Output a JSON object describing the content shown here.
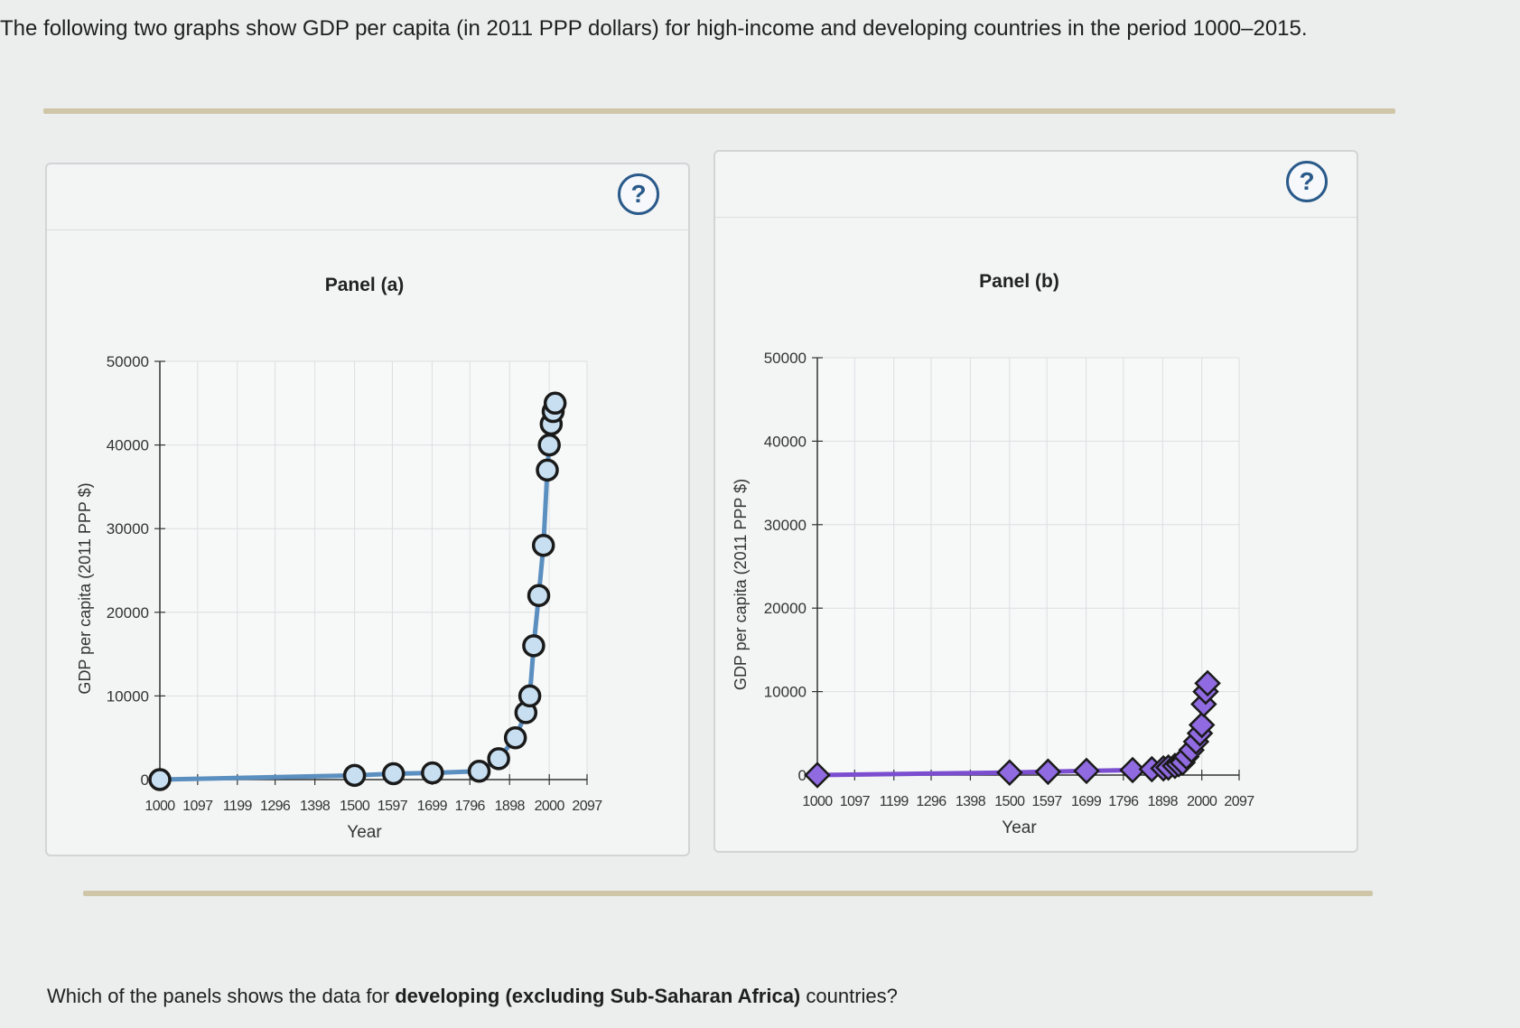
{
  "intro_text": "The following two graphs show GDP per capita (in 2011 PPP dollars) for high-income and developing countries in the period 1000–2015.",
  "question": {
    "prefix": "Which of the panels shows the data for ",
    "emphasis": "developing (excluding Sub-Saharan Africa)",
    "suffix": " countries?"
  },
  "help_label": "?",
  "colors": {
    "panel_a_series": "#5b8fbf",
    "panel_a_marker_fill": "#c7dff0",
    "panel_a_marker_stroke": "#1a1a1a",
    "panel_b_series": "#7b4ed0",
    "panel_b_marker_fill": "#8f6ae0",
    "panel_b_marker_stroke": "#1a1a1a"
  },
  "chart_data": [
    {
      "type": "line",
      "title": "Panel (a)",
      "xlabel": "Year",
      "ylabel": "GDP per capita (2011 PPP $)",
      "xlim": [
        1000,
        2097
      ],
      "ylim": [
        0,
        50000
      ],
      "x_ticks": [
        1000,
        1097,
        1199,
        1296,
        1398,
        1500,
        1597,
        1699,
        1796,
        1898,
        2000,
        2097
      ],
      "y_ticks": [
        0,
        10000,
        20000,
        30000,
        40000,
        50000
      ],
      "marker": "circle",
      "grid": true,
      "series": [
        {
          "x": [
            1000,
            1500,
            1600,
            1700,
            1820,
            1870,
            1913,
            1940,
            1950,
            1960,
            1973,
            1985,
            1995,
            2000,
            2005,
            2010,
            2015
          ],
          "y": [
            0,
            500,
            700,
            800,
            1000,
            2500,
            5000,
            8000,
            10000,
            16000,
            22000,
            28000,
            37000,
            40000,
            42500,
            44000,
            45000
          ]
        }
      ]
    },
    {
      "type": "line",
      "title": "Panel (b)",
      "xlabel": "Year",
      "ylabel": "GDP per capita (2011 PPP $)",
      "xlim": [
        1000,
        2097
      ],
      "ylim": [
        0,
        50000
      ],
      "x_ticks": [
        1000,
        1097,
        1199,
        1296,
        1398,
        1500,
        1597,
        1699,
        1796,
        1898,
        2000,
        2097
      ],
      "y_ticks": [
        0,
        10000,
        20000,
        30000,
        40000,
        50000
      ],
      "marker": "diamond",
      "grid": true,
      "series": [
        {
          "x": [
            1000,
            1500,
            1600,
            1700,
            1820,
            1870,
            1900,
            1913,
            1930,
            1940,
            1950,
            1960,
            1973,
            1985,
            1995,
            2000,
            2005,
            2010,
            2015
          ],
          "y": [
            0,
            300,
            400,
            500,
            600,
            700,
            800,
            900,
            1100,
            1300,
            1500,
            2200,
            3000,
            4000,
            5000,
            6000,
            8500,
            10000,
            11000
          ]
        }
      ]
    }
  ]
}
